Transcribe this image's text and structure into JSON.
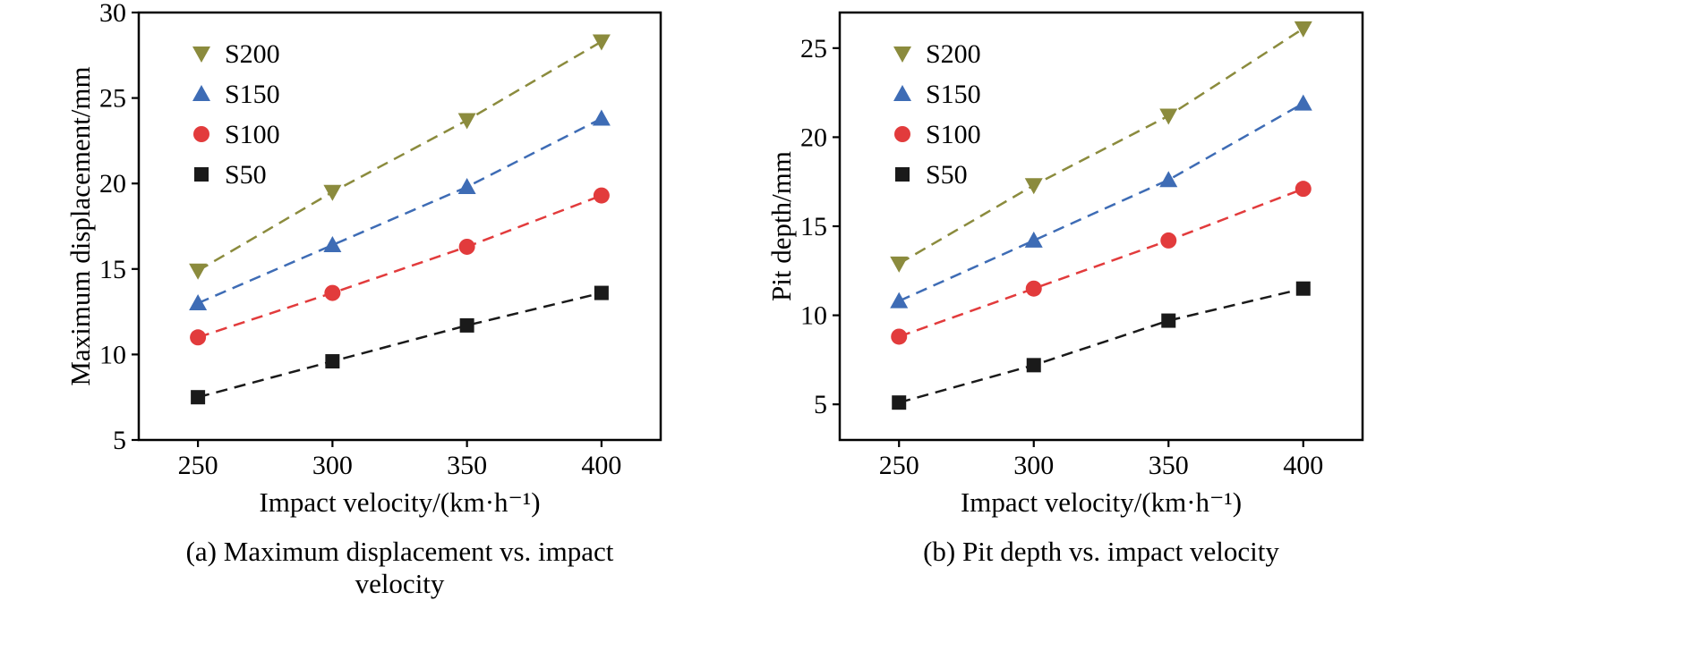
{
  "figure": {
    "background": "#ffffff",
    "text_color": "#000000",
    "axis_color": "#000000"
  },
  "chart_data": [
    {
      "type": "line",
      "caption": "(a) Maximum displacement vs. impact velocity",
      "xlabel": "Impact velocity/(km·h⁻¹)",
      "ylabel": "Maximum displacement/mm",
      "x": [
        250,
        300,
        350,
        400
      ],
      "xticks": [
        250,
        300,
        350,
        400
      ],
      "yticks": [
        5,
        10,
        15,
        20,
        25,
        30
      ],
      "xlim": [
        228,
        422
      ],
      "ylim": [
        5,
        30
      ],
      "grid": false,
      "line_style": "dashed",
      "legend_position": "top-left",
      "series": [
        {
          "name": "S200",
          "marker": "triangle-down",
          "color": "#8b8b3d",
          "values": [
            14.9,
            19.5,
            23.7,
            28.3
          ]
        },
        {
          "name": "S150",
          "marker": "triangle-up",
          "color": "#3e6cb5",
          "values": [
            13.0,
            16.4,
            19.8,
            23.8
          ]
        },
        {
          "name": "S100",
          "marker": "circle",
          "color": "#e23b3c",
          "values": [
            11.0,
            13.6,
            16.3,
            19.3
          ]
        },
        {
          "name": "S50",
          "marker": "square",
          "color": "#1a1a1a",
          "values": [
            7.5,
            9.6,
            11.7,
            13.6
          ]
        }
      ]
    },
    {
      "type": "line",
      "caption": "(b) Pit depth vs. impact velocity",
      "xlabel": "Impact velocity/(km·h⁻¹)",
      "ylabel": "Pit depth/mm",
      "x": [
        250,
        300,
        350,
        400
      ],
      "xticks": [
        250,
        300,
        350,
        400
      ],
      "yticks": [
        5,
        10,
        15,
        20,
        25
      ],
      "xlim": [
        228,
        422
      ],
      "ylim": [
        3,
        27
      ],
      "grid": false,
      "line_style": "dashed",
      "legend_position": "top-left",
      "series": [
        {
          "name": "S200",
          "marker": "triangle-down",
          "color": "#8b8b3d",
          "values": [
            12.9,
            17.3,
            21.2,
            26.1
          ]
        },
        {
          "name": "S150",
          "marker": "triangle-up",
          "color": "#3e6cb5",
          "values": [
            10.8,
            14.2,
            17.6,
            21.9
          ]
        },
        {
          "name": "S100",
          "marker": "circle",
          "color": "#e23b3c",
          "values": [
            8.8,
            11.5,
            14.2,
            17.1
          ]
        },
        {
          "name": "S50",
          "marker": "square",
          "color": "#1a1a1a",
          "values": [
            5.1,
            7.2,
            9.7,
            11.5
          ]
        }
      ]
    }
  ]
}
